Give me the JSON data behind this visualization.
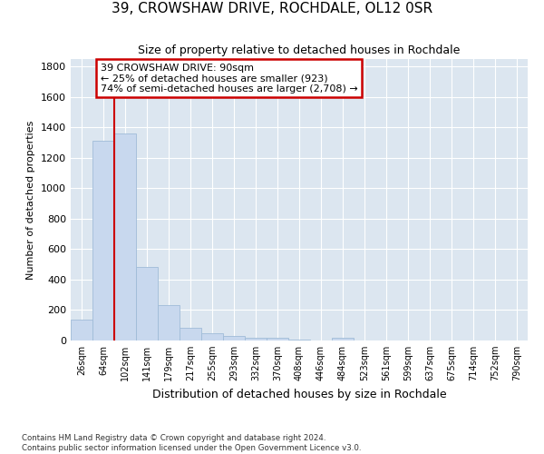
{
  "title": "39, CROWSHAW DRIVE, ROCHDALE, OL12 0SR",
  "subtitle": "Size of property relative to detached houses in Rochdale",
  "xlabel": "Distribution of detached houses by size in Rochdale",
  "ylabel": "Number of detached properties",
  "bar_labels": [
    "26sqm",
    "64sqm",
    "102sqm",
    "141sqm",
    "179sqm",
    "217sqm",
    "255sqm",
    "293sqm",
    "332sqm",
    "370sqm",
    "408sqm",
    "446sqm",
    "484sqm",
    "523sqm",
    "561sqm",
    "599sqm",
    "637sqm",
    "675sqm",
    "714sqm",
    "752sqm",
    "790sqm"
  ],
  "bar_values": [
    135,
    1310,
    1360,
    485,
    230,
    85,
    50,
    28,
    18,
    20,
    5,
    2,
    18,
    0,
    0,
    0,
    0,
    0,
    0,
    0,
    0
  ],
  "bar_color": "#c8d8ee",
  "bar_edge_color": "#a0bcd8",
  "vline_x": 2.0,
  "vline_color": "#cc0000",
  "annotation_text": "39 CROWSHAW DRIVE: 90sqm\n← 25% of detached houses are smaller (923)\n74% of semi-detached houses are larger (2,708) →",
  "annotation_box_edgecolor": "#cc0000",
  "annotation_box_facecolor": "#ffffff",
  "ylim": [
    0,
    1850
  ],
  "yticks": [
    0,
    200,
    400,
    600,
    800,
    1000,
    1200,
    1400,
    1600,
    1800
  ],
  "plot_bg_color": "#dce6f0",
  "fig_bg_color": "#ffffff",
  "grid_color": "#ffffff",
  "footer_line1": "Contains HM Land Registry data © Crown copyright and database right 2024.",
  "footer_line2": "Contains public sector information licensed under the Open Government Licence v3.0."
}
